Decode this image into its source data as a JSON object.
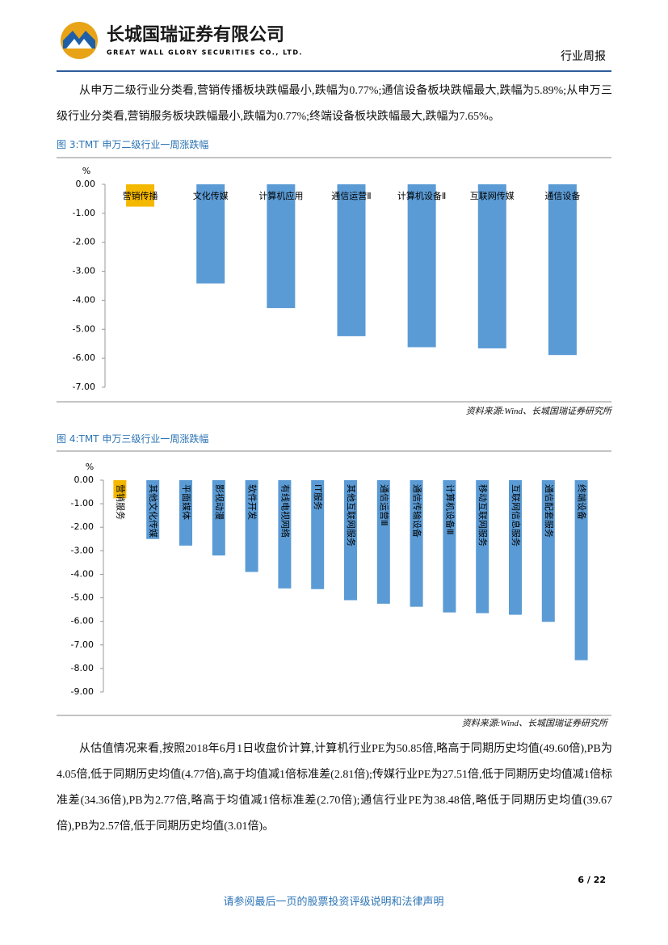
{
  "header": {
    "company": "长城国瑞证券有限公司",
    "company_en": "GREAT WALL GLORY SECURITIES CO., LTD.",
    "report_type": "行业周报"
  },
  "paragraphs": [
    "从申万二级行业分类看,营销传播板块跌幅最小,跌幅为0.77%;通信设备板块跌幅最大,跌幅为5.89%;从申万三级行业分类看,营销服务板块跌幅最小,跌幅为0.77%;终端设备板块跌幅最大,跌幅为7.65%。",
    "从估值情况来看,按照2018年6月1日收盘价计算,计算机行业PE为50.85倍,略高于同期历史均值(49.60倍),PB为4.05倍,低于同期历史均值(4.77倍),高于均值减1倍标准差(2.81倍);传媒行业PE为27.51倍,低于同期历史均值减1倍标准差(34.36倍),PB为2.77倍,略高于均值减1倍标准差(2.70倍);通信行业PE为38.48倍,略低于同期历史均值(39.67倍),PB为2.57倍,低于同期历史均值(3.01倍)。"
  ],
  "chart_data": [
    {
      "type": "bar",
      "title": "图 3:TMT 申万二级行业一周涨跌幅",
      "y_label": "%",
      "source": "资料来源:Wind、长城国瑞证券研究所",
      "categories": [
        "营销传播",
        "文化传媒",
        "计算机应用",
        "通信运营Ⅱ",
        "计算机设备Ⅱ",
        "互联网传媒",
        "通信设备"
      ],
      "values": [
        -0.77,
        -3.42,
        -4.27,
        -5.24,
        -5.62,
        -5.66,
        -5.89
      ],
      "colors": [
        "#f5b800",
        "#5b9bd5",
        "#5b9bd5",
        "#5b9bd5",
        "#5b9bd5",
        "#5b9bd5",
        "#5b9bd5"
      ],
      "ylim": [
        -7,
        0
      ],
      "yticks": [
        {
          "value": 0,
          "label": "0.00"
        },
        {
          "value": -1,
          "label": "-1.00"
        },
        {
          "value": -2,
          "label": "-2.00"
        },
        {
          "value": -3,
          "label": "-3.00"
        },
        {
          "value": -4,
          "label": "-4.00"
        },
        {
          "value": -5,
          "label": "-5.00"
        },
        {
          "value": -6,
          "label": "-6.00"
        },
        {
          "value": -7,
          "label": "-7.00"
        }
      ]
    },
    {
      "type": "bar",
      "title": "图 4:TMT 申万三级行业一周涨跌幅",
      "y_label": "%",
      "source": "资料来源:Wind、长城国瑞证券研究所",
      "categories": [
        "营销服务",
        "其他文化传媒",
        "平面媒体",
        "影视动漫",
        "软件开发",
        "有线电视网络",
        "IT服务",
        "其他互联网服务",
        "通信运营Ⅲ",
        "通信传输设备",
        "计算机设备Ⅲ",
        "移动互联网服务",
        "互联网信息服务",
        "通信配套服务",
        "终端设备"
      ],
      "values": [
        -0.77,
        -2.5,
        -2.78,
        -3.2,
        -3.9,
        -4.6,
        -4.63,
        -5.1,
        -5.25,
        -5.38,
        -5.62,
        -5.65,
        -5.72,
        -6.02,
        -7.65
      ],
      "colors": [
        "#f5b800",
        "#5b9bd5",
        "#5b9bd5",
        "#5b9bd5",
        "#5b9bd5",
        "#5b9bd5",
        "#5b9bd5",
        "#5b9bd5",
        "#5b9bd5",
        "#5b9bd5",
        "#5b9bd5",
        "#5b9bd5",
        "#5b9bd5",
        "#5b9bd5",
        "#5b9bd5"
      ],
      "ylim": [
        -9,
        0
      ],
      "yticks": [
        {
          "value": 0,
          "label": "0.00"
        },
        {
          "value": -1,
          "label": "-1.00"
        },
        {
          "value": -2,
          "label": "-2.00"
        },
        {
          "value": -3,
          "label": "-3.00"
        },
        {
          "value": -4,
          "label": "-4.00"
        },
        {
          "value": -5,
          "label": "-5.00"
        },
        {
          "value": -6,
          "label": "-6.00"
        },
        {
          "value": -7,
          "label": "-7.00"
        },
        {
          "value": -8,
          "label": "-8.00"
        },
        {
          "value": -9,
          "label": "-9.00"
        }
      ]
    }
  ],
  "footer": {
    "page": "6 / 22",
    "disclaimer": "请参阅最后一页的股票投资评级说明和法律声明"
  }
}
